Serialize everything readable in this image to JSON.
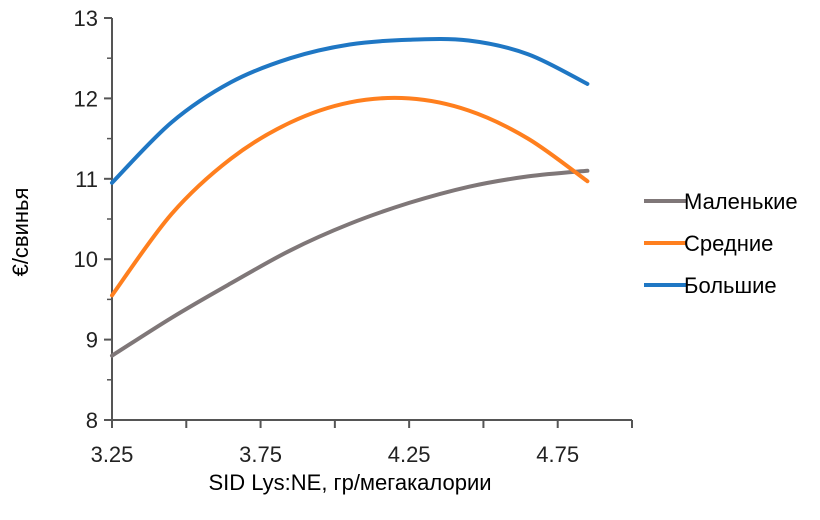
{
  "chart_data": {
    "type": "line",
    "xlabel": "SID Lys:NE, гр/мегакалории",
    "ylabel": "€/свинья",
    "xlim": [
      3.25,
      5.0
    ],
    "ylim": [
      8,
      13
    ],
    "x_ticks": [
      "3.25",
      "3.75",
      "4.25",
      "4.75"
    ],
    "y_ticks": [
      "8",
      "9",
      "10",
      "11",
      "12",
      "13"
    ],
    "grid": false,
    "legend_position": "right",
    "x": [
      3.25,
      3.45,
      3.65,
      3.85,
      4.05,
      4.25,
      4.45,
      4.65,
      4.85
    ],
    "series": [
      {
        "name": "Маленькие",
        "color": "#7f7778",
        "values": [
          8.8,
          9.27,
          9.7,
          10.11,
          10.44,
          10.7,
          10.9,
          11.03,
          11.1
        ]
      },
      {
        "name": "Средние",
        "color": "#ff7f1e",
        "values": [
          9.55,
          10.56,
          11.25,
          11.7,
          11.95,
          12.0,
          11.85,
          11.5,
          10.97
        ]
      },
      {
        "name": "Большие",
        "color": "#1f77c4",
        "values": [
          10.95,
          11.7,
          12.2,
          12.5,
          12.67,
          12.73,
          12.72,
          12.55,
          12.18
        ]
      }
    ]
  }
}
